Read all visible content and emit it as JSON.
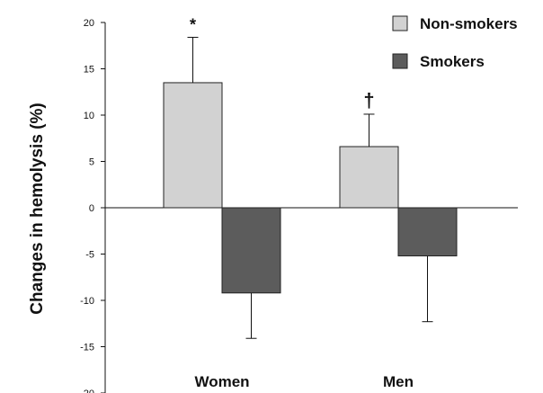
{
  "chart_data": {
    "type": "bar",
    "categories": [
      "Women",
      "Men"
    ],
    "series": [
      {
        "name": "Non-smokers",
        "color": "#d2d2d2",
        "values": [
          13.5,
          6.6
        ],
        "error": [
          4.9,
          3.5
        ]
      },
      {
        "name": "Smokers",
        "color": "#5c5c5c",
        "values": [
          -9.2,
          -5.2
        ],
        "error": [
          4.9,
          7.1
        ]
      }
    ],
    "annotations": [
      "*",
      "†"
    ],
    "xlabel": "",
    "ylabel": "Changes in hemolysis (%)",
    "ylim": [
      -20,
      20
    ],
    "yticks": [
      20,
      15,
      10,
      5,
      0,
      -5,
      -10,
      -15,
      -20
    ],
    "grid": false,
    "legend_position": "top-right"
  }
}
